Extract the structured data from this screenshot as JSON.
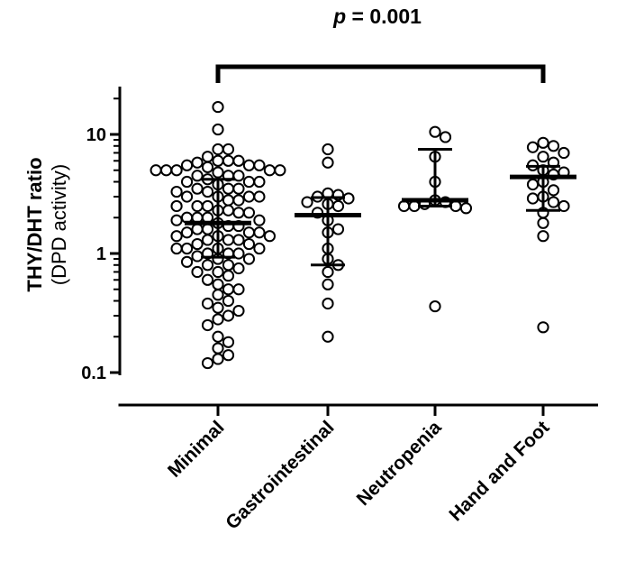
{
  "chart_data": {
    "type": "scatter",
    "title": "",
    "ylabel": "THY/DHT ratio",
    "ylabel_sub": "(DPD activity)",
    "yscale": "log",
    "ylim": [
      0.1,
      25
    ],
    "yticks": [
      0.1,
      1,
      10
    ],
    "ytick_labels": [
      "0.1",
      "1",
      "10"
    ],
    "categories": [
      "Minimal",
      "Gastrointestinal",
      "Neutropenia",
      "Hand and Foot"
    ],
    "significance": {
      "p_label": "p",
      "text": " = 0.001",
      "from": "Minimal",
      "to": "Hand and Foot"
    },
    "groups": [
      {
        "name": "Minimal",
        "median": 1.8,
        "q1": 0.93,
        "q3": 4.2,
        "values": [
          17,
          11,
          7.5,
          7.5,
          6.5,
          6.0,
          6.0,
          6.0,
          5.8,
          5.5,
          5.5,
          5.5,
          5.3,
          5.0,
          5.0,
          5.0,
          5.0,
          5.0,
          4.8,
          4.5,
          4.5,
          4.5,
          4.2,
          4.0,
          4.0,
          4.0,
          3.8,
          3.5,
          3.5,
          3.5,
          3.3,
          3.3,
          3.0,
          3.0,
          3.0,
          3.0,
          2.8,
          2.8,
          2.5,
          2.5,
          2.5,
          2.3,
          2.3,
          2.2,
          2.2,
          2.0,
          2.0,
          2.0,
          1.9,
          1.9,
          1.8,
          1.7,
          1.7,
          1.6,
          1.6,
          1.5,
          1.5,
          1.5,
          1.4,
          1.4,
          1.4,
          1.3,
          1.3,
          1.3,
          1.2,
          1.2,
          1.1,
          1.1,
          1.1,
          1.1,
          1.0,
          1.0,
          1.0,
          0.95,
          0.9,
          0.9,
          0.85,
          0.8,
          0.8,
          0.75,
          0.7,
          0.7,
          0.65,
          0.6,
          0.55,
          0.5,
          0.5,
          0.45,
          0.4,
          0.38,
          0.35,
          0.33,
          0.3,
          0.28,
          0.25,
          0.2,
          0.18,
          0.16,
          0.14,
          0.13,
          0.12
        ]
      },
      {
        "name": "Gastrointestinal",
        "median": 2.1,
        "q1": 0.8,
        "q3": 2.95,
        "values": [
          7.5,
          5.8,
          3.2,
          3.1,
          3.0,
          2.9,
          2.7,
          2.6,
          2.5,
          2.2,
          1.9,
          1.6,
          1.5,
          1.1,
          0.9,
          0.8,
          0.7,
          0.55,
          0.38,
          0.2
        ]
      },
      {
        "name": "Neutropenia",
        "median": 2.8,
        "q1": 2.5,
        "q3": 7.5,
        "values": [
          10.5,
          9.5,
          6.5,
          4.0,
          2.8,
          2.7,
          2.6,
          2.5,
          2.5,
          2.4,
          2.5,
          0.36
        ]
      },
      {
        "name": "Hand and Foot",
        "median": 4.4,
        "q1": 2.3,
        "q3": 5.4,
        "values": [
          8.5,
          8.0,
          7.8,
          7.0,
          6.5,
          5.8,
          5.5,
          5.0,
          4.8,
          4.6,
          4.0,
          3.8,
          3.4,
          3.0,
          2.9,
          2.7,
          2.5,
          2.2,
          1.8,
          1.4,
          0.24
        ]
      }
    ]
  }
}
